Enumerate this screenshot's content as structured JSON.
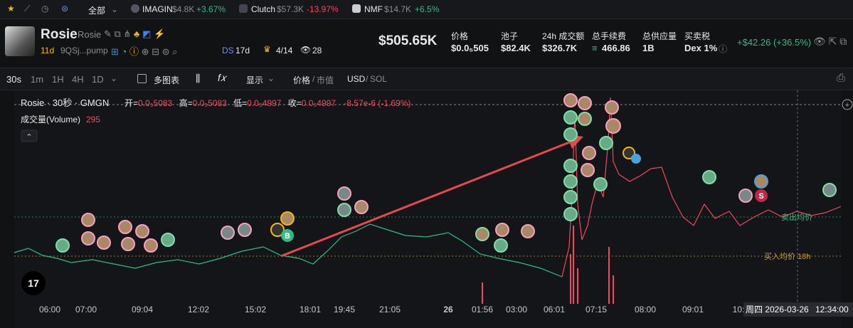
{
  "ticker_bar": {
    "filter": "全部",
    "items": [
      {
        "name": "IMAGIN",
        "mcap": "$4.8K",
        "change": "+3.67%"
      },
      {
        "name": "Clutch",
        "mcap": "$57.3K",
        "change": "-13.97%"
      },
      {
        "name": "NMF",
        "mcap": "$14.7K",
        "change": "+6.5%"
      }
    ]
  },
  "token": {
    "name": "Rosie",
    "symbol": "Rosie",
    "age": "11d",
    "address": "9QSj...pump",
    "ds_label": "DS",
    "ds_age": "17d",
    "crown": "4/14",
    "watchers": "28",
    "market_cap": "$505.65K",
    "stats": [
      {
        "label": "价格",
        "value": "$0.0₅505"
      },
      {
        "label": "池子",
        "value": "$82.4K"
      },
      {
        "label": "24h 成交额",
        "value": "$326.7K"
      },
      {
        "label": "总手续费",
        "value": "466.86"
      },
      {
        "label": "总供应量",
        "value": "1B"
      },
      {
        "label": "买卖税",
        "value": "Dex 1%"
      }
    ],
    "change": "+$42.26 (+36.5%)"
  },
  "toolbar": {
    "intervals": [
      "30s",
      "1m",
      "1H",
      "4H",
      "1D"
    ],
    "multi_chart": "多图表",
    "display": "显示",
    "price": "价格",
    "separator": "/",
    "market_cap": "市值",
    "usd": "USD",
    "sol": "SOL"
  },
  "chart": {
    "title": "Rosie · 30秒 · GMGN",
    "ohlc": [
      {
        "label": "开=",
        "value": "0.0₅5083"
      },
      {
        "label": "高=",
        "value": "0.0₅5083"
      },
      {
        "label": "低=",
        "value": "0.0₅4997"
      },
      {
        "label": "收=",
        "value": "0.0₅4997"
      }
    ],
    "change": "-8.57e-6 (-1.69%)",
    "volume_label": "成交量(Volume)",
    "volume_value": "295",
    "sell_avg": "卖出均价",
    "buy_avg": "买入均价 18h",
    "markers": [
      "B",
      "S"
    ],
    "x_labels": [
      "06:00",
      "07:00",
      "09:04",
      "12:02",
      "15:02",
      "18:01",
      "19:45",
      "21:05",
      "26",
      "01:56",
      "03:00",
      "06:01",
      "07:15",
      "08:00",
      "09:01",
      "10:"
    ],
    "crosshair_date": "周四 2026-03-26",
    "crosshair_time": "12:34:00"
  }
}
